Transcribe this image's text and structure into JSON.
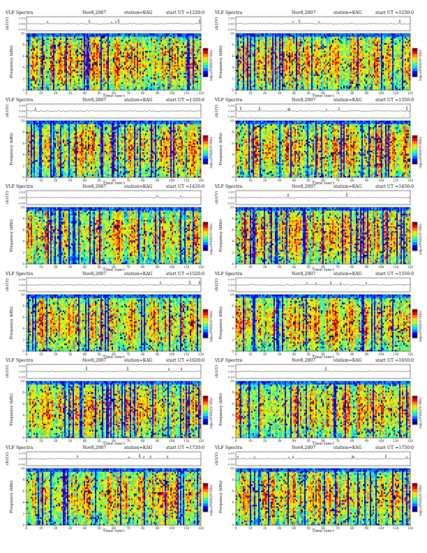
{
  "figure": {
    "header_left": "VLF Spectra",
    "date": "Nov8,2007",
    "station": "station=KAG",
    "start_prefix": "start  UT"
  },
  "axis_labels": {
    "channel_y": "ch1(V)",
    "spec_y": "Frequency  (kHz)",
    "x": "Time  (sec)",
    "colorbar": "log₁₀(PSD)(V²/Hz)"
  },
  "chart_data": {
    "type": "heatmap",
    "rows": 6,
    "cols": 2,
    "x_range": [
      0,
      120
    ],
    "x_ticks": [
      0,
      10,
      20,
      30,
      40,
      50,
      60,
      70,
      80,
      90,
      100,
      110,
      120
    ],
    "x_tick_labels": [
      "0",
      "10",
      "20",
      "30",
      "40",
      "50",
      "60",
      "70",
      "80",
      "90",
      "100",
      "110",
      "120"
    ],
    "freq_range_khz": [
      0,
      10
    ],
    "freq_ticks": [
      0,
      2,
      4,
      6,
      8,
      10
    ],
    "freq_tick_labels": [
      "0",
      "2",
      "4",
      "6",
      "8",
      "10"
    ],
    "channel_ticks": [
      "0.50",
      "0.00",
      "-0.50"
    ],
    "colorbar_ticks": [
      "-",
      "-"
    ],
    "colormap": [
      "#00007f",
      "#0000ff",
      "#0080ff",
      "#00e0ff",
      "#40ff80",
      "#c0ff20",
      "#ffe000",
      "#ff8000",
      "#ff0000",
      "#7f0000"
    ],
    "panels": [
      {
        "start": "=1220:0",
        "seed": 11
      },
      {
        "start": "=1250:0",
        "seed": 23
      },
      {
        "start": "=1320:0",
        "seed": 37
      },
      {
        "start": "=1350:0",
        "seed": 41
      },
      {
        "start": "=1420:0",
        "seed": 53
      },
      {
        "start": "=1450:0",
        "seed": 67
      },
      {
        "start": "=1520:0",
        "seed": 71
      },
      {
        "start": "=1550:0",
        "seed": 83
      },
      {
        "start": "=1620:0",
        "seed": 97
      },
      {
        "start": "=1650:0",
        "seed": 101
      },
      {
        "start": "=1720:0",
        "seed": 113
      },
      {
        "start": "=1750:0",
        "seed": 127
      }
    ]
  }
}
